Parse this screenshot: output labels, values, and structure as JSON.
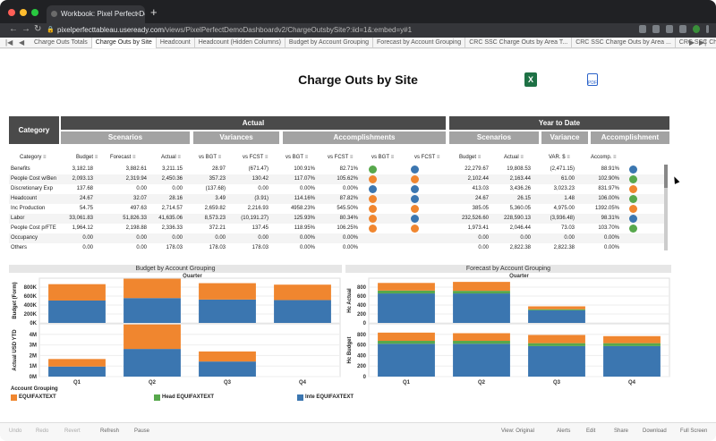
{
  "browser": {
    "tab_title": "Workbook: Pixel Perfect Demo",
    "url_host": "pixelperfecttableau.useready.com",
    "url_path": "/views/PixelPerfectDemoDashboardv2/ChargeOutsbySite?:iid=1&:embed=y#1",
    "avatar_letter": "S"
  },
  "sheet_tabs": [
    "Charge Outs Totals",
    "Charge Outs by Site",
    "Headcount",
    "Headcount (Hidden Columns)",
    "Budget by Account Grouping",
    "Forecast by Account Grouping",
    "CRC SSC Charge Outs by Area T...",
    "CRC SSC Charge Outs by Area ...",
    "CRC SSC Charge Outs by Site S..."
  ],
  "active_sheet": 1,
  "dashboard": {
    "title": "Charge Outs by Site",
    "excel_icon_text": "X",
    "pdf_icon_text": "PDF"
  },
  "table": {
    "category_header": "Category",
    "actual_header": "Actual",
    "ytd_header": "Year to Date",
    "sub_headers": {
      "scenarios": "Scenarios",
      "variances": "Variances",
      "accomplishments": "Accomplishments",
      "ytd_scenarios": "Scenarios",
      "ytd_variance": "Variance",
      "ytd_accomplishment": "Accomplishment"
    },
    "columns": [
      "Category",
      "Budget",
      "Forecast",
      "Actual",
      "vs BGT",
      "vs FCST",
      "vs BGT",
      "vs FCST",
      "vs BGT",
      "vs FCST",
      "Budget",
      "Actual",
      "VAR. $",
      "Accomp."
    ],
    "rows": [
      {
        "cat": "Benefits",
        "v": [
          "3,182.18",
          "3,882.61",
          "3,211.15",
          "28.97",
          "(671.47)",
          "100.91%",
          "82.71%",
          "",
          "",
          "22,279.67",
          "19,808.53",
          "(2,471.15)",
          "88.91%"
        ],
        "d": [
          "green",
          "blue",
          "blue"
        ]
      },
      {
        "cat": "People Cost w/Ben",
        "v": [
          "2,093.13",
          "2,319.94",
          "2,450.36",
          "357.23",
          "130.42",
          "117.07%",
          "105.62%",
          "",
          "",
          "2,102.44",
          "2,163.44",
          "61.00",
          "102.90%"
        ],
        "d": [
          "orange",
          "orange",
          "green"
        ]
      },
      {
        "cat": "Discretionary Exp",
        "v": [
          "137.68",
          "0.00",
          "0.00",
          "(137.68)",
          "0.00",
          "0.00%",
          "0.00%",
          "",
          "",
          "413.03",
          "3,436.26",
          "3,023.23",
          "831.97%"
        ],
        "d": [
          "blue",
          "blue",
          "orange"
        ]
      },
      {
        "cat": "Headcount",
        "v": [
          "24.67",
          "32.07",
          "28.16",
          "3.49",
          "(3.91)",
          "114.16%",
          "87.82%",
          "",
          "",
          "24.67",
          "26.15",
          "1.48",
          "106.00%"
        ],
        "d": [
          "orange",
          "blue",
          "green"
        ]
      },
      {
        "cat": "Inc Production",
        "v": [
          "54.75",
          "497.63",
          "2,714.57",
          "2,659.82",
          "2,216.93",
          "4958.23%",
          "545.50%",
          "",
          "",
          "385.05",
          "5,360.05",
          "4,975.00",
          "1392.05%"
        ],
        "d": [
          "orange",
          "orange",
          "orange"
        ]
      },
      {
        "cat": "Labor",
        "v": [
          "33,061.83",
          "51,826.33",
          "41,635.06",
          "8,573.23",
          "(10,191.27)",
          "125.93%",
          "80.34%",
          "",
          "",
          "232,526.60",
          "228,590.13",
          "(3,936.48)",
          "98.31%"
        ],
        "d": [
          "orange",
          "blue",
          "blue"
        ]
      },
      {
        "cat": "People Cost p/FTE",
        "v": [
          "1,964.12",
          "2,198.88",
          "2,336.33",
          "372.21",
          "137.45",
          "118.95%",
          "106.25%",
          "",
          "",
          "1,973.41",
          "2,046.44",
          "73.03",
          "103.70%"
        ],
        "d": [
          "orange",
          "orange",
          "green"
        ]
      },
      {
        "cat": "Occupancy",
        "v": [
          "0.00",
          "0.00",
          "0.00",
          "0.00",
          "0.00",
          "0.00%",
          "0.00%",
          "",
          "",
          "0.00",
          "0.00",
          "0.00",
          "0.00%"
        ],
        "d": [
          "",
          "",
          ""
        ]
      },
      {
        "cat": "Others",
        "v": [
          "0.00",
          "0.00",
          "178.03",
          "178.03",
          "178.03",
          "0.00%",
          "0.00%",
          "",
          "",
          "0.00",
          "2,822.38",
          "2,822.38",
          "0.00%"
        ],
        "d": [
          "",
          "",
          ""
        ]
      }
    ]
  },
  "colors": {
    "orange": "#f0862f",
    "green": "#57a84c",
    "blue": "#3b76b0",
    "header_dark": "#4a4a4a",
    "header_light": "#a3a3a3"
  },
  "budget_panel": {
    "title": "Budget by Account Grouping",
    "quarter_label": "Quarter",
    "top_axis_label": "Budget  (Form)",
    "bottom_axis_label": "Actual USD YTD"
  },
  "forecast_panel": {
    "title": "Forecast by Account Grouping",
    "quarter_label": "Quarter",
    "top_axis_label": "Hc Actual",
    "bottom_axis_label": "Hc Budget"
  },
  "chart_data": [
    {
      "type": "bar",
      "title": "Budget by Account Grouping",
      "subtitle": "Quarter",
      "ylabel": "Budget  (Form)",
      "categories": [
        "Q1",
        "Q2",
        "Q3",
        "Q4"
      ],
      "yticks": [
        "0K",
        "200K",
        "400K",
        "600K",
        "800K"
      ],
      "ylim": [
        0,
        900000
      ],
      "series": [
        {
          "name": "Inte EQUIFAXTEXT",
          "color": "#3b76b0",
          "values": [
            450000,
            500000,
            470000,
            460000
          ]
        },
        {
          "name": "EQUIFAXTEXT",
          "color": "#f0862f",
          "values": [
            330000,
            390000,
            330000,
            310000
          ]
        }
      ]
    },
    {
      "type": "bar",
      "ylabel": "Actual USD YTD",
      "categories": [
        "Q1",
        "Q2",
        "Q3",
        "Q4"
      ],
      "yticks": [
        "0M",
        "1M",
        "2M",
        "3M",
        "4M"
      ],
      "ylim": [
        0,
        4200000
      ],
      "series": [
        {
          "name": "Inte EQUIFAXTEXT",
          "color": "#3b76b0",
          "values": [
            800000,
            2200000,
            1200000,
            0
          ]
        },
        {
          "name": "EQUIFAXTEXT",
          "color": "#f0862f",
          "values": [
            600000,
            1950000,
            800000,
            0
          ]
        }
      ]
    },
    {
      "type": "bar",
      "title": "Forecast by Account Grouping",
      "subtitle": "Quarter",
      "ylabel": "Hc Actual",
      "categories": [
        "Q1",
        "Q2",
        "Q3",
        "Q4"
      ],
      "yticks": [
        "0",
        "200",
        "400",
        "600",
        "800"
      ],
      "ylim": [
        0,
        850
      ],
      "series": [
        {
          "name": "Inte EQUIFAXTEXT",
          "color": "#3b76b0",
          "values": [
            560,
            560,
            240,
            0
          ]
        },
        {
          "name": "Head EQUIFAXTEXT",
          "color": "#57a84c",
          "values": [
            55,
            50,
            20,
            0
          ]
        },
        {
          "name": "EQUIFAXTEXT",
          "color": "#f0862f",
          "values": [
            145,
            170,
            55,
            0
          ]
        }
      ]
    },
    {
      "type": "bar",
      "ylabel": "Hc Budget",
      "categories": [
        "Q1",
        "Q2",
        "Q3",
        "Q4"
      ],
      "xtick_labels": [
        "Q1",
        "Q2",
        "Q3",
        "Q4"
      ],
      "yticks": [
        "0",
        "200",
        "400",
        "600",
        "800"
      ],
      "ylim": [
        0,
        900
      ],
      "series": [
        {
          "name": "Inte EQUIFAXTEXT",
          "color": "#3b76b0",
          "values": [
            560,
            560,
            520,
            520
          ]
        },
        {
          "name": "Head EQUIFAXTEXT",
          "color": "#57a84c",
          "values": [
            50,
            50,
            50,
            50
          ]
        },
        {
          "name": "EQUIFAXTEXT",
          "color": "#f0862f",
          "values": [
            140,
            130,
            140,
            120
          ]
        }
      ]
    }
  ],
  "legend": {
    "title": "Account Grouping",
    "items": [
      {
        "label": "EQUIFAXTEXT",
        "color": "#f0862f"
      },
      {
        "label": "Head EQUIFAXTEXT",
        "color": "#57a84c"
      },
      {
        "label": "Inte EQUIFAXTEXT",
        "color": "#3b76b0"
      }
    ]
  },
  "toolbar": {
    "undo": "Undo",
    "redo": "Redo",
    "revert": "Revert",
    "refresh": "Refresh",
    "pause": "Pause",
    "view_original": "View: Original",
    "alerts": "Alerts",
    "edit": "Edit",
    "share": "Share",
    "download": "Download",
    "full_screen": "Full Screen"
  }
}
